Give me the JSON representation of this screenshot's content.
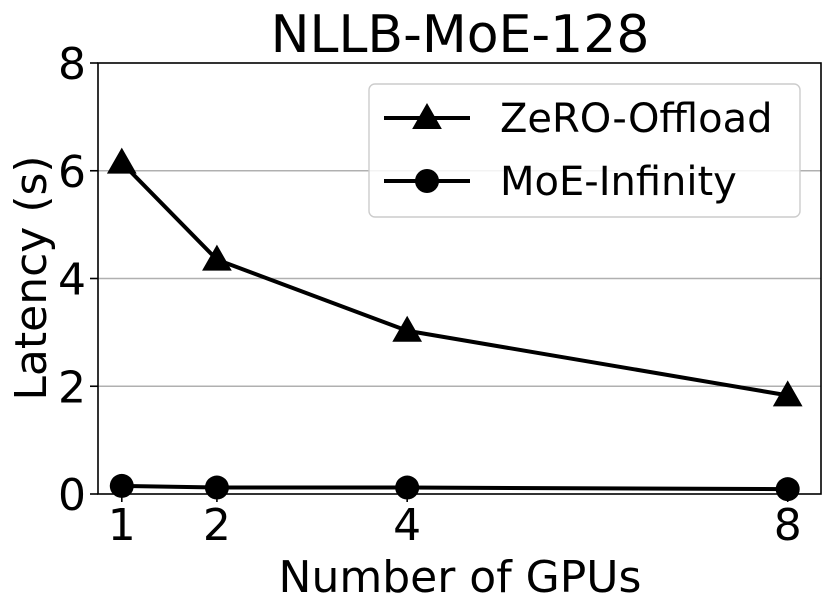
{
  "chart_data": {
    "type": "line",
    "title": "NLLB-MoE-128",
    "xlabel": "Number of GPUs",
    "ylabel": "Latency (s)",
    "x": [
      1,
      2,
      4,
      8
    ],
    "x_ticks": [
      "1",
      "2",
      "4",
      "8"
    ],
    "ylim": [
      0,
      8
    ],
    "y_ticks": [
      "0",
      "2",
      "4",
      "6",
      "8"
    ],
    "grid": "horizontal",
    "legend_position": "top-right",
    "series": [
      {
        "name": "ZeRO-Offload",
        "marker": "triangle",
        "color": "#000000",
        "values": [
          6.15,
          4.35,
          3.03,
          1.83
        ]
      },
      {
        "name": "MoE-Infinity",
        "marker": "circle",
        "color": "#000000",
        "values": [
          0.15,
          0.12,
          0.12,
          0.09
        ]
      }
    ]
  }
}
